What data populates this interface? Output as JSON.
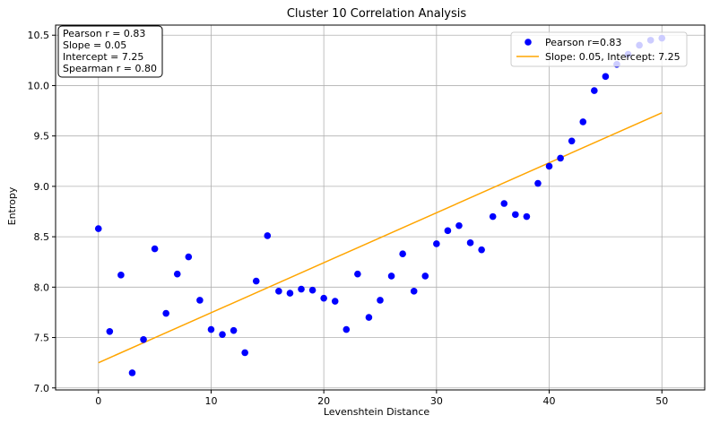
{
  "chart_data": {
    "type": "scatter",
    "title": "Cluster 10 Correlation Analysis",
    "xlabel": "Levenshtein Distance",
    "ylabel": "Entropy",
    "xlim": [
      -3.8,
      53.8
    ],
    "ylim": [
      6.98,
      10.6
    ],
    "xticks": [
      0,
      10,
      20,
      30,
      40,
      50
    ],
    "yticks": [
      7.0,
      7.5,
      8.0,
      8.5,
      9.0,
      9.5,
      10.0,
      10.5
    ],
    "xtick_labels": [
      "0",
      "10",
      "20",
      "30",
      "40",
      "50"
    ],
    "ytick_labels": [
      "7.0",
      "7.5",
      "8.0",
      "8.5",
      "9.0",
      "9.5",
      "10.0",
      "10.5"
    ],
    "grid": true,
    "legend_position": "top-right",
    "stats_box": {
      "lines": [
        "Pearson r = 0.83",
        "Slope = 0.05",
        "Intercept = 7.25",
        "Spearman r = 0.80"
      ]
    },
    "series": [
      {
        "name": "Pearson r=0.83",
        "kind": "scatter",
        "color": "#0000ff",
        "x": [
          0,
          1,
          2,
          3,
          4,
          5,
          6,
          7,
          8,
          9,
          10,
          11,
          12,
          13,
          14,
          15,
          16,
          17,
          18,
          19,
          20,
          21,
          22,
          23,
          24,
          25,
          26,
          27,
          28,
          29,
          30,
          31,
          32,
          33,
          34,
          35,
          36,
          37,
          38,
          39,
          40,
          41,
          42,
          43,
          44,
          45,
          46,
          47,
          48,
          49,
          50
        ],
        "y": [
          8.58,
          7.56,
          8.12,
          7.15,
          7.48,
          8.38,
          7.74,
          8.13,
          8.3,
          7.87,
          7.58,
          7.53,
          7.57,
          7.35,
          8.06,
          8.51,
          7.96,
          7.94,
          7.98,
          7.97,
          7.89,
          7.86,
          7.58,
          8.13,
          7.7,
          7.87,
          8.11,
          8.33,
          7.96,
          8.11,
          8.43,
          8.56,
          8.61,
          8.44,
          8.37,
          8.7,
          8.83,
          8.72,
          8.7,
          9.03,
          9.2,
          9.28,
          9.45,
          9.64,
          9.95,
          10.09,
          10.21,
          10.31,
          10.4,
          10.45,
          10.47
        ]
      },
      {
        "name": "Slope: 0.05, Intercept: 7.25",
        "kind": "line",
        "color": "#ffa500",
        "x": [
          0,
          50
        ],
        "y": [
          7.25,
          9.73
        ]
      }
    ]
  }
}
